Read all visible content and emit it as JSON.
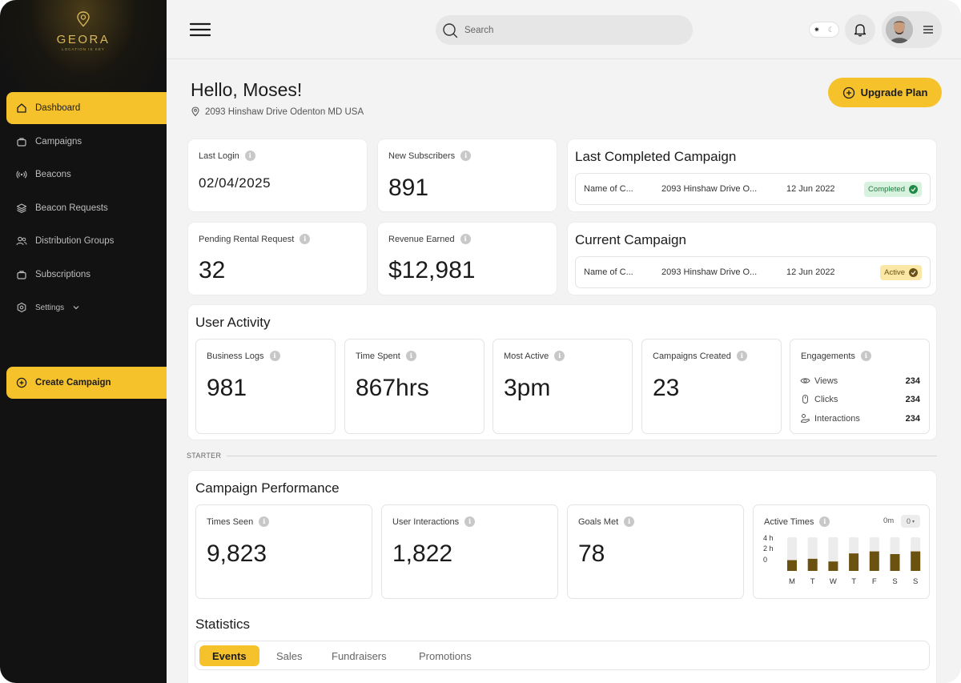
{
  "brand": {
    "name": "GEORA",
    "tagline": "LOCATION IS KEY"
  },
  "sidebar": {
    "items": [
      {
        "label": "Dashboard",
        "icon": "home-icon",
        "active": true
      },
      {
        "label": "Campaigns",
        "icon": "briefcase-icon"
      },
      {
        "label": "Beacons",
        "icon": "broadcast-icon"
      },
      {
        "label": "Beacon Requests",
        "icon": "layers-icon"
      },
      {
        "label": "Distribution Groups",
        "icon": "users-icon"
      },
      {
        "label": "Subscriptions",
        "icon": "briefcase-icon"
      },
      {
        "label": "Settings",
        "icon": "gear-icon"
      }
    ],
    "create_label": "Create Campaign"
  },
  "topbar": {
    "search_placeholder": "Search"
  },
  "greeting": {
    "title": "Hello, Moses!",
    "address": "2093 Hinshaw Drive Odenton MD USA",
    "upgrade_label": "Upgrade Plan"
  },
  "stats": {
    "last_login": {
      "label": "Last Login",
      "value": "02/04/2025"
    },
    "new_subscribers": {
      "label": "New Subscribers",
      "value": "891"
    },
    "pending_rental": {
      "label": "Pending Rental Request",
      "value": "32"
    },
    "revenue": {
      "label": "Revenue Earned",
      "value": "$12,981"
    }
  },
  "last_campaign": {
    "title": "Last Completed Campaign",
    "name": "Name of C...",
    "address": "2093 Hinshaw Drive O...",
    "date": "12 Jun 2022",
    "status": "Completed"
  },
  "current_campaign": {
    "title": "Current Campaign",
    "name": "Name of C...",
    "address": "2093 Hinshaw Drive O...",
    "date": "12 Jun 2022",
    "status": "Active"
  },
  "user_activity": {
    "title": "User Activity",
    "business_logs": {
      "label": "Business Logs",
      "value": "981"
    },
    "time_spent": {
      "label": "Time Spent",
      "value": "867hrs"
    },
    "most_active": {
      "label": "Most Active",
      "value": "3pm"
    },
    "campaigns_created": {
      "label": "Campaigns Created",
      "value": "23"
    },
    "engagements": {
      "label": "Engagements",
      "rows": [
        {
          "label": "Views",
          "value": "234"
        },
        {
          "label": "Clicks",
          "value": "234"
        },
        {
          "label": "Interactions",
          "value": "234"
        }
      ]
    }
  },
  "plan_divider": "STARTER",
  "campaign_performance": {
    "title": "Campaign Performance",
    "times_seen": {
      "label": "Times Seen",
      "value": "9,823"
    },
    "user_interactions": {
      "label": "User Interactions",
      "value": "1,822"
    },
    "goals_met": {
      "label": "Goals Met",
      "value": "78"
    },
    "active_times": {
      "label": "Active Times",
      "readout": "0m",
      "select": "0"
    }
  },
  "chart_data": {
    "type": "bar",
    "categories": [
      "M",
      "T",
      "W",
      "T",
      "F",
      "S",
      "S"
    ],
    "values": [
      1.6,
      1.8,
      1.4,
      2.6,
      2.9,
      2.5,
      2.9
    ],
    "yticks": [
      "4 h",
      "2 h",
      "0"
    ],
    "ylim": [
      0,
      5
    ]
  },
  "statistics": {
    "title": "Statistics",
    "tabs": [
      "Events",
      "Sales",
      "Fundraisers",
      "Promotions"
    ]
  },
  "colors": {
    "accent": "#f6c22c",
    "sidebar": "#121212",
    "bar": "#6b5210",
    "bar_track": "#ececec",
    "completed_bg": "#d7f2df",
    "active_bg": "#fbe7a6"
  }
}
